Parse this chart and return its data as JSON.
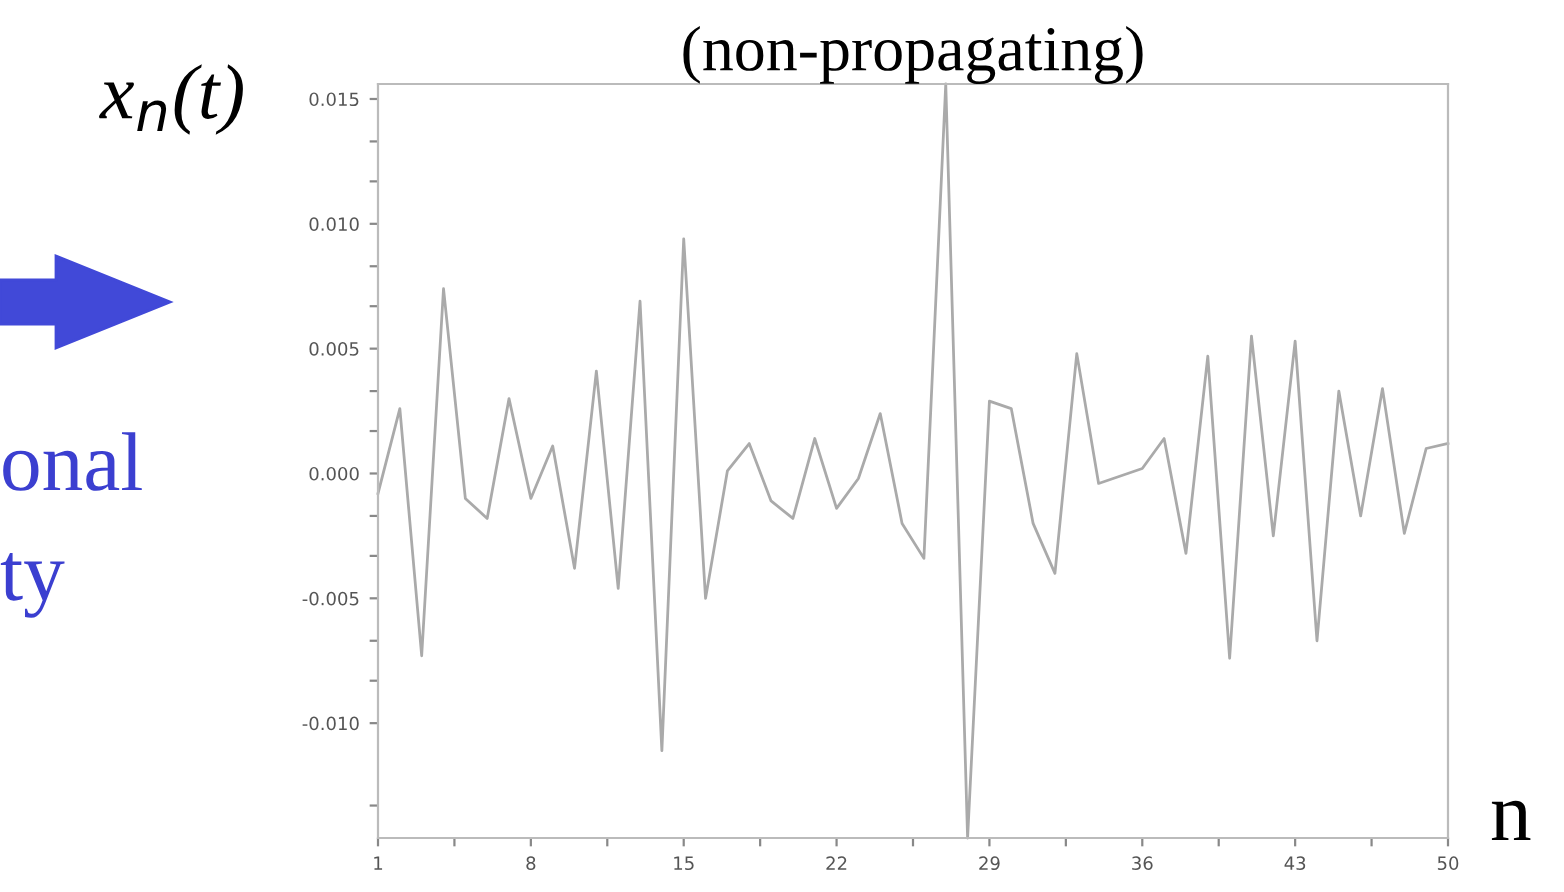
{
  "chart_data": {
    "type": "line",
    "title": "(non-propagating)",
    "xlabel": "n",
    "ylabel": "x$_{n}$(t)",
    "annotations": [
      "onal",
      "ty"
    ],
    "x": [
      1,
      2,
      3,
      4,
      5,
      6,
      7,
      8,
      9,
      10,
      11,
      12,
      13,
      14,
      15,
      16,
      17,
      18,
      19,
      20,
      21,
      22,
      23,
      24,
      25,
      26,
      27,
      28,
      29,
      30,
      31,
      32,
      33,
      34,
      35,
      36,
      37,
      38,
      39,
      40,
      41,
      42,
      43,
      44,
      45,
      46,
      47,
      48,
      49,
      50
    ],
    "series": [
      {
        "color": "#aaaaaa",
        "values": [
          -0.0008,
          0.0026,
          -0.0073,
          0.0074,
          -0.001,
          -0.0018,
          0.003,
          -0.001,
          0.0011,
          -0.0038,
          0.0041,
          -0.0046,
          0.0069,
          -0.0111,
          0.0094,
          -0.005,
          0.0001,
          0.0012,
          -0.0011,
          -0.0018,
          0.0014,
          -0.0014,
          -0.0002,
          0.0024,
          -0.002,
          -0.0034,
          0.0156,
          -0.0146,
          0.0029,
          0.0026,
          -0.002,
          -0.004,
          0.0048,
          -0.0004,
          -0.0001,
          0.0002,
          0.0014,
          -0.0032,
          0.0047,
          -0.0074,
          0.0055,
          -0.0025,
          0.0053,
          -0.0067,
          0.0033,
          -0.0017,
          0.0034,
          -0.0024,
          0.001,
          0.0012
        ]
      }
    ],
    "xlim": [
      1,
      50
    ],
    "xticks": [
      1,
      {
        "value": 4.5,
        "label": null
      },
      8,
      {
        "value": 11.5,
        "label": null
      },
      15,
      {
        "value": 18.5,
        "label": null
      },
      22,
      {
        "value": 25.5,
        "label": null
      },
      29,
      {
        "value": 32.5,
        "label": null
      },
      36,
      {
        "value": 39.5,
        "label": null
      },
      43,
      {
        "value": 46.5,
        "label": null
      },
      50
    ],
    "ylim": [
      -0.0146,
      0.0156
    ],
    "yticks": [
      {
        "value": -0.0133,
        "label": null
      },
      {
        "value": -0.01,
        "label": "-0.010"
      },
      {
        "value": -0.0083,
        "label": null
      },
      {
        "value": -0.0067,
        "label": null
      },
      {
        "value": -0.005,
        "label": "-0.005"
      },
      {
        "value": -0.0033,
        "label": null
      },
      {
        "value": -0.0017,
        "label": null
      },
      {
        "value": 0,
        "label": "0.000"
      },
      {
        "value": 0.0017,
        "label": null
      },
      {
        "value": 0.0033,
        "label": null
      },
      {
        "value": 0.005,
        "label": "0.005"
      },
      {
        "value": 0.0067,
        "label": null
      },
      {
        "value": 0.0083,
        "label": null
      },
      {
        "value": 0.01,
        "label": "0.010"
      },
      {
        "value": 0.0117,
        "label": null
      },
      {
        "value": 0.0133,
        "label": null
      },
      {
        "value": 0.015,
        "label": "0.015"
      }
    ],
    "grid": false,
    "legend": false,
    "marker": "none",
    "line_style": "solid"
  }
}
